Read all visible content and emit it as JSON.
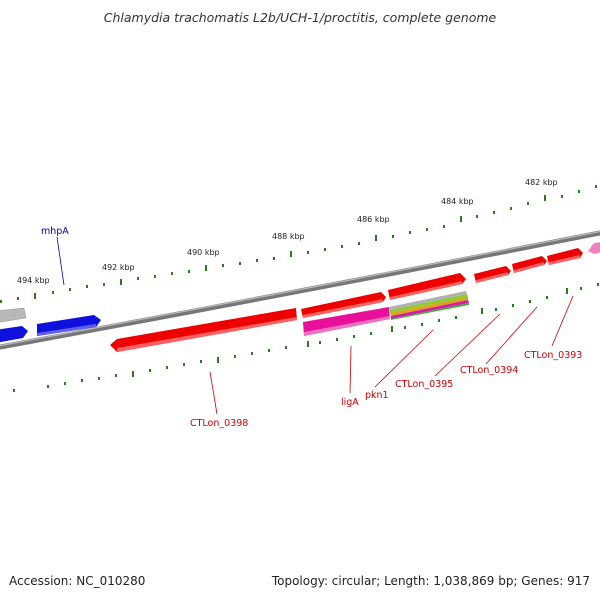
{
  "title": "Chlamydia trachomatis L2b/UCH-1/proctitis, complete genome",
  "footer": {
    "accession": "Accession: NC_010280",
    "summary": "Topology: circular; Length: 1,038,869 bp; Genes: 917"
  },
  "scale_labels": [
    "482 kbp",
    "484 kbp",
    "486 kbp",
    "488 kbp",
    "490 kbp",
    "492 kbp",
    "494 kbp"
  ],
  "gene_labels": {
    "mhpA": "mhpA",
    "CTLon_0398": "CTLon_0398",
    "ligA": "ligA",
    "pkn1": "pkn1",
    "CTLon_0395": "CTLon_0395",
    "CTLon_0394": "CTLon_0394",
    "CTLon_0393": "CTLon_0393"
  },
  "colors": {
    "backbone": "#777777",
    "tick": "#2a7a1e",
    "gene_red": "#ee0000",
    "gene_blue": "#1010dd",
    "gene_magenta": "#e8109a",
    "gene_grey": "#b0b0b0",
    "label_red": "#cc0000",
    "label_blue": "#0000bb"
  }
}
